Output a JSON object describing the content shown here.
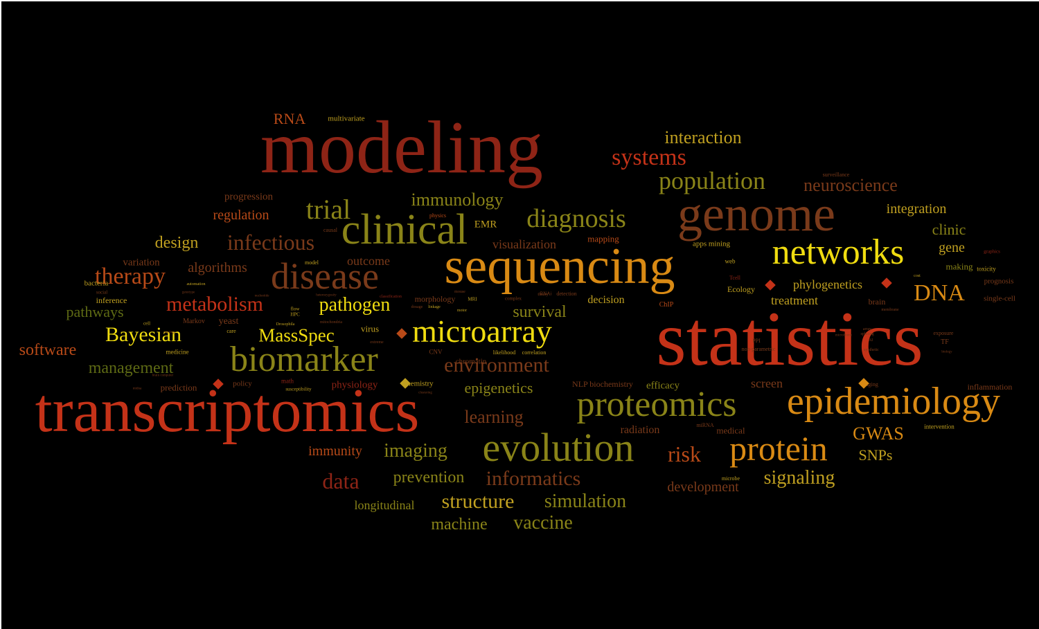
{
  "palette": {
    "red": "#c43218",
    "darkred": "#8e2416",
    "brown": "#7a3a1a",
    "rust": "#b84a18",
    "orange": "#d98a14",
    "yellow": "#f0dc10",
    "gold": "#c0a020",
    "olive": "#8a8418",
    "dkolive": "#5e6a14",
    "tan": "#8a5a2a"
  },
  "words": [
    {
      "text": "statistics",
      "color": "red"
    },
    {
      "text": "modeling",
      "color": "darkred"
    },
    {
      "text": "transcriptomics",
      "color": "red"
    },
    {
      "text": "sequencing",
      "color": "orange"
    },
    {
      "text": "genome",
      "color": "brown"
    },
    {
      "text": "clinical",
      "color": "olive"
    },
    {
      "text": "epidemiology",
      "color": "orange"
    },
    {
      "text": "proteomics",
      "color": "olive"
    },
    {
      "text": "biomarker",
      "color": "olive"
    },
    {
      "text": "networks",
      "color": "yellow"
    },
    {
      "text": "disease",
      "color": "brown"
    },
    {
      "text": "microarray",
      "color": "yellow"
    },
    {
      "text": "evolution",
      "color": "olive"
    },
    {
      "text": "protein",
      "color": "orange"
    },
    {
      "text": "diagnosis",
      "color": "olive"
    },
    {
      "text": "trial",
      "color": "olive"
    },
    {
      "text": "metabolism",
      "color": "red"
    },
    {
      "text": "systems",
      "color": "red"
    },
    {
      "text": "population",
      "color": "olive"
    },
    {
      "text": "DNA",
      "color": "orange"
    },
    {
      "text": "infectious",
      "color": "brown"
    },
    {
      "text": "therapy",
      "color": "rust"
    },
    {
      "text": "environment",
      "color": "brown"
    },
    {
      "text": "Bayesian",
      "color": "yellow"
    },
    {
      "text": "MassSpec",
      "color": "yellow"
    },
    {
      "text": "neuroscience",
      "color": "brown"
    },
    {
      "text": "interaction",
      "color": "gold"
    },
    {
      "text": "immunology",
      "color": "olive"
    },
    {
      "text": "pathogen",
      "color": "yellow"
    },
    {
      "text": "survival",
      "color": "olive"
    },
    {
      "text": "risk",
      "color": "rust"
    },
    {
      "text": "data",
      "color": "darkred"
    },
    {
      "text": "informatics",
      "color": "brown"
    },
    {
      "text": "structure",
      "color": "gold"
    },
    {
      "text": "simulation",
      "color": "olive"
    },
    {
      "text": "vaccine",
      "color": "olive"
    },
    {
      "text": "machine",
      "color": "olive"
    },
    {
      "text": "signaling",
      "color": "gold"
    },
    {
      "text": "imaging",
      "color": "olive"
    },
    {
      "text": "prevention",
      "color": "olive"
    },
    {
      "text": "learning",
      "color": "brown"
    },
    {
      "text": "epigenetics",
      "color": "olive"
    },
    {
      "text": "GWAS",
      "color": "orange"
    },
    {
      "text": "SNPs",
      "color": "gold"
    },
    {
      "text": "management",
      "color": "dkolive"
    },
    {
      "text": "software",
      "color": "rust"
    },
    {
      "text": "pathways",
      "color": "dkolive"
    },
    {
      "text": "design",
      "color": "gold"
    },
    {
      "text": "algorithms",
      "color": "brown"
    },
    {
      "text": "integration",
      "color": "gold"
    },
    {
      "text": "clinic",
      "color": "olive"
    },
    {
      "text": "gene",
      "color": "gold"
    },
    {
      "text": "phylogenetics",
      "color": "gold"
    },
    {
      "text": "treatment",
      "color": "gold"
    },
    {
      "text": "visualization",
      "color": "brown"
    },
    {
      "text": "regulation",
      "color": "rust"
    },
    {
      "text": "progression",
      "color": "brown"
    },
    {
      "text": "outcome",
      "color": "brown"
    },
    {
      "text": "RNA",
      "color": "rust"
    },
    {
      "text": "multivariate",
      "color": "gold"
    },
    {
      "text": "immunity",
      "color": "rust"
    },
    {
      "text": "longitudinal",
      "color": "olive"
    },
    {
      "text": "development",
      "color": "brown"
    },
    {
      "text": "radiation",
      "color": "brown"
    },
    {
      "text": "medical",
      "color": "brown"
    },
    {
      "text": "screen",
      "color": "brown"
    },
    {
      "text": "efficacy",
      "color": "olive"
    },
    {
      "text": "decision",
      "color": "gold"
    },
    {
      "text": "EMR",
      "color": "gold"
    },
    {
      "text": "mapping",
      "color": "rust"
    },
    {
      "text": "apps mining",
      "color": "gold"
    },
    {
      "text": "making",
      "color": "olive"
    },
    {
      "text": "brain",
      "color": "brown"
    },
    {
      "text": "prognosis",
      "color": "brown"
    },
    {
      "text": "single-cell",
      "color": "brown"
    },
    {
      "text": "inflammation",
      "color": "brown"
    },
    {
      "text": "intervention",
      "color": "gold"
    },
    {
      "text": "yeast",
      "color": "brown"
    },
    {
      "text": "virus",
      "color": "gold"
    },
    {
      "text": "chromatin",
      "color": "brown"
    },
    {
      "text": "morphology",
      "color": "brown"
    },
    {
      "text": "physiology",
      "color": "darkred"
    },
    {
      "text": "chemistry",
      "color": "gold"
    },
    {
      "text": "policy",
      "color": "brown"
    },
    {
      "text": "prediction",
      "color": "brown"
    },
    {
      "text": "NLP biochemistry",
      "color": "brown"
    },
    {
      "text": "variation",
      "color": "brown"
    },
    {
      "text": "inference",
      "color": "gold"
    },
    {
      "text": "bacteria",
      "color": "gold"
    },
    {
      "text": "medicine",
      "color": "gold"
    },
    {
      "text": "Ecology",
      "color": "gold"
    },
    {
      "text": "ChIP",
      "color": "rust"
    },
    {
      "text": "CNV",
      "color": "brown"
    },
    {
      "text": "correlation",
      "color": "gold"
    },
    {
      "text": "likelihood",
      "color": "gold"
    },
    {
      "text": "math",
      "color": "darkred"
    },
    {
      "text": "susceptibility",
      "color": "gold"
    },
    {
      "text": "Markov",
      "color": "brown"
    },
    {
      "text": "complex",
      "color": "brown"
    },
    {
      "text": "web",
      "color": "gold"
    },
    {
      "text": "model",
      "color": "gold"
    },
    {
      "text": "physics",
      "color": "rust"
    },
    {
      "text": "causal",
      "color": "brown"
    },
    {
      "text": "automation",
      "color": "gold"
    },
    {
      "text": "social",
      "color": "brown"
    },
    {
      "text": "cell",
      "color": "gold"
    },
    {
      "text": "care",
      "color": "gold"
    },
    {
      "text": "flow",
      "color": "gold"
    },
    {
      "text": "HPC",
      "color": "gold"
    },
    {
      "text": "motor",
      "color": "gold"
    },
    {
      "text": "mouse",
      "color": "brown"
    },
    {
      "text": "MRI",
      "color": "gold"
    },
    {
      "text": "RNAi",
      "color": "brown"
    },
    {
      "text": "detection",
      "color": "brown"
    },
    {
      "text": "dosage",
      "color": "brown"
    },
    {
      "text": "linkage",
      "color": "gold"
    },
    {
      "text": "Drosophila",
      "color": "gold"
    },
    {
      "text": "mitochondria",
      "color": "brown"
    },
    {
      "text": "classification",
      "color": "darkred"
    },
    {
      "text": "surveillance",
      "color": "brown"
    },
    {
      "text": "graphics",
      "color": "darkred"
    },
    {
      "text": "Tcell",
      "color": "darkred"
    },
    {
      "text": "toxicity",
      "color": "gold"
    },
    {
      "text": "exposure",
      "color": "brown"
    },
    {
      "text": "TF",
      "color": "brown"
    },
    {
      "text": "PPI",
      "color": "brown"
    },
    {
      "text": "non-parametric",
      "color": "brown"
    },
    {
      "text": "aging",
      "color": "brown"
    },
    {
      "text": "miRNA",
      "color": "brown"
    },
    {
      "text": "microbe",
      "color": "gold"
    },
    {
      "text": "membrane",
      "color": "brown"
    },
    {
      "text": "cost",
      "color": "gold"
    },
    {
      "text": "AI",
      "color": "brown"
    },
    {
      "text": "array",
      "color": "brown"
    },
    {
      "text": "splicing",
      "color": "brown"
    },
    {
      "text": "extreme",
      "color": "brown"
    },
    {
      "text": "theory",
      "color": "brown"
    },
    {
      "text": "synthetic",
      "color": "brown"
    },
    {
      "text": "biology",
      "color": "brown"
    },
    {
      "text": "microbiome",
      "color": "brown"
    },
    {
      "text": "clustering",
      "color": "brown"
    },
    {
      "text": "nucleotide",
      "color": "brown"
    },
    {
      "text": "ontology",
      "color": "brown"
    },
    {
      "text": "heterozygosity",
      "color": "brown"
    },
    {
      "text": "brain computer",
      "color": "brown"
    },
    {
      "text": "mtdna",
      "color": "brown"
    },
    {
      "text": "genotype",
      "color": "brown"
    }
  ],
  "markers": [
    {
      "color": "red"
    },
    {
      "color": "red"
    },
    {
      "color": "rust"
    },
    {
      "color": "red"
    },
    {
      "color": "orange"
    },
    {
      "color": "gold"
    }
  ]
}
